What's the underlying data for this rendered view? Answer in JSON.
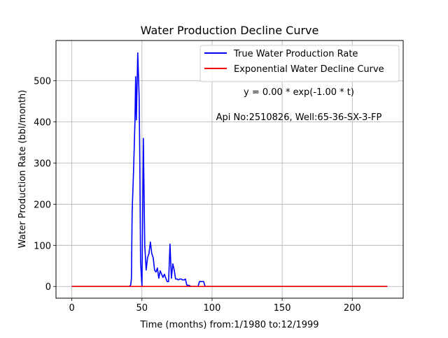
{
  "chart_data": {
    "type": "line",
    "title": "Water Production Decline Curve",
    "xlabel": "Time (months) from:1/1980 to:12/1999",
    "ylabel": "Water Production Rate (bbl/month)",
    "xlim": [
      -11.3,
      236.3
    ],
    "ylim": [
      -28.5,
      598
    ],
    "xticks": [
      0,
      50,
      100,
      150,
      200
    ],
    "yticks": [
      0,
      100,
      200,
      300,
      400,
      500
    ],
    "grid": true,
    "legend_position": "upper right",
    "annotations": [
      "y = 0.00 * exp(-1.00 * t)",
      "Api No:2510826, Well:65-36-SX-3-FP"
    ],
    "series": [
      {
        "name": "True Water Production Rate",
        "color": "#0000ff",
        "points": [
          [
            0,
            0
          ],
          [
            10,
            0
          ],
          [
            20,
            0
          ],
          [
            30,
            0
          ],
          [
            40,
            0
          ],
          [
            41,
            0
          ],
          [
            42,
            4
          ],
          [
            42.5,
            20
          ],
          [
            43,
            180
          ],
          [
            44,
            280
          ],
          [
            45,
            400
          ],
          [
            45.5,
            510
          ],
          [
            46,
            405
          ],
          [
            47,
            568
          ],
          [
            48,
            460
          ],
          [
            48.5,
            300
          ],
          [
            49,
            60
          ],
          [
            50,
            0
          ],
          [
            51,
            360
          ],
          [
            52,
            100
          ],
          [
            53,
            40
          ],
          [
            54,
            70
          ],
          [
            55,
            80
          ],
          [
            56,
            108
          ],
          [
            57,
            80
          ],
          [
            58,
            70
          ],
          [
            59,
            40
          ],
          [
            60,
            35
          ],
          [
            61,
            45
          ],
          [
            62,
            20
          ],
          [
            63,
            38
          ],
          [
            64,
            30
          ],
          [
            65,
            22
          ],
          [
            66,
            30
          ],
          [
            67,
            20
          ],
          [
            68,
            12
          ],
          [
            69,
            12
          ],
          [
            70,
            103
          ],
          [
            71,
            20
          ],
          [
            72,
            55
          ],
          [
            73,
            40
          ],
          [
            74,
            18
          ],
          [
            75,
            18
          ],
          [
            76,
            16
          ],
          [
            77,
            18
          ],
          [
            78,
            18
          ],
          [
            79,
            16
          ],
          [
            80,
            16
          ],
          [
            81,
            18
          ],
          [
            82,
            3
          ],
          [
            83,
            3
          ],
          [
            84,
            2
          ],
          [
            85,
            0
          ],
          [
            90,
            0
          ],
          [
            91,
            12
          ],
          [
            92,
            12
          ],
          [
            93,
            12
          ],
          [
            94,
            12
          ],
          [
            95,
            0
          ],
          [
            100,
            0
          ],
          [
            120,
            0
          ],
          [
            150,
            0
          ],
          [
            180,
            0
          ],
          [
            200,
            0
          ],
          [
            225,
            0
          ]
        ]
      },
      {
        "name": "Exponential Water Decline Curve",
        "color": "#ff0000",
        "points": [
          [
            0,
            0
          ],
          [
            225,
            0
          ]
        ]
      }
    ]
  }
}
